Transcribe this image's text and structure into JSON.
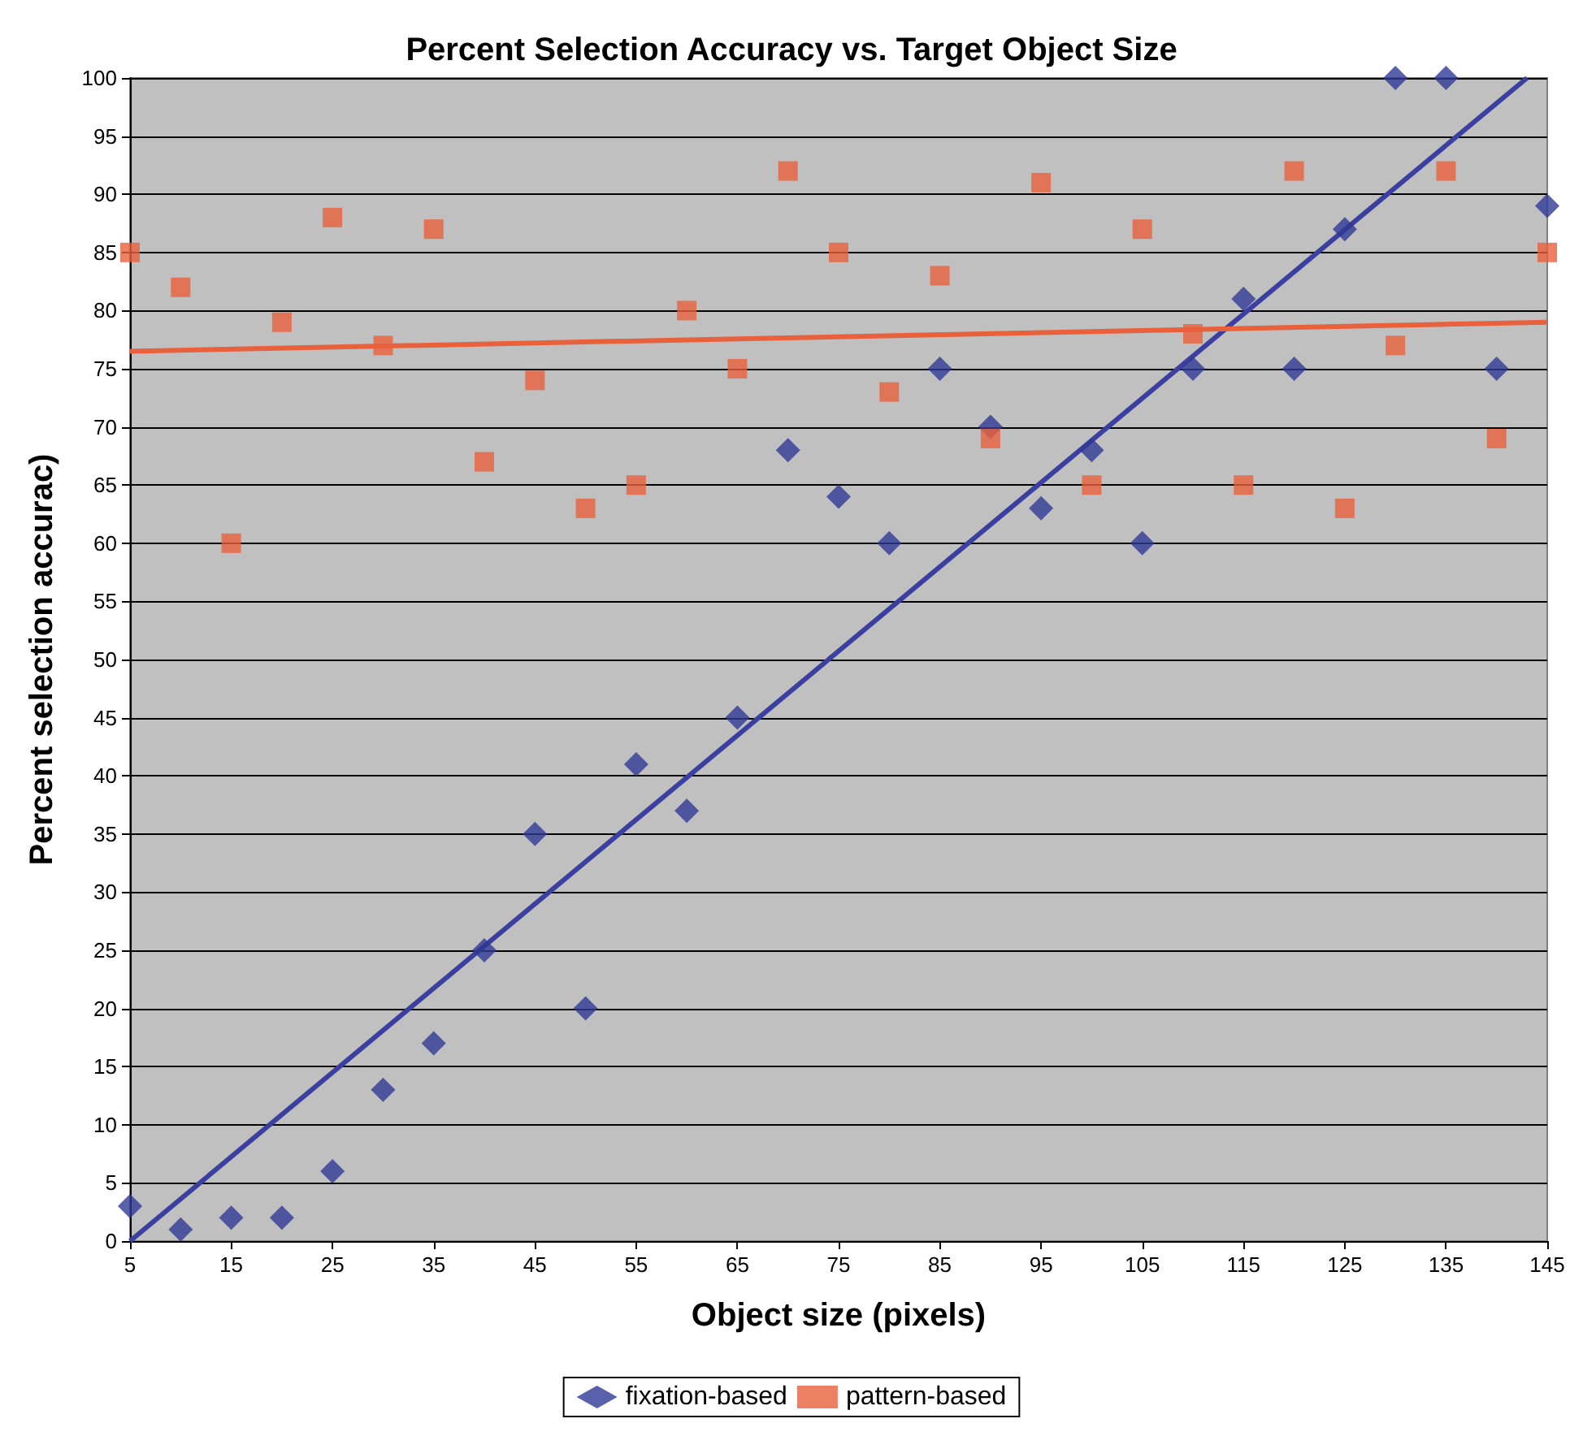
{
  "chart_data": {
    "type": "scatter",
    "title": "Percent Selection Accuracy vs. Target Object Size",
    "xlabel": "Object size (pixels)",
    "ylabel": "Percent selection accurac)",
    "x": [
      5,
      10,
      15,
      20,
      25,
      30,
      35,
      40,
      45,
      50,
      55,
      60,
      65,
      70,
      75,
      80,
      85,
      90,
      95,
      100,
      105,
      110,
      115,
      120,
      125,
      130,
      135,
      140,
      145
    ],
    "series": [
      {
        "name": "fixation-based",
        "color": "#2e3a94",
        "marker": "diamond",
        "values": [
          3,
          1,
          2,
          2,
          6,
          13,
          17,
          25,
          35,
          20,
          41,
          37,
          45,
          68,
          64,
          60,
          75,
          70,
          63,
          68,
          60,
          75,
          81,
          75,
          87,
          100,
          100,
          75,
          89
        ]
      },
      {
        "name": "pattern-based",
        "color": "#e8603c",
        "marker": "square",
        "values": [
          85,
          82,
          60,
          79,
          88,
          77,
          87,
          67,
          74,
          63,
          65,
          80,
          75,
          92,
          85,
          73,
          83,
          69,
          91,
          65,
          87,
          78,
          65,
          92,
          63,
          77,
          92,
          69,
          85
        ]
      },
      {
        "type": "line",
        "color": "#3a3fa0",
        "marker": "none",
        "x": [
          5,
          143
        ],
        "values": [
          0,
          100
        ]
      },
      {
        "type": "line",
        "color": "#e8603c",
        "marker": "none",
        "x": [
          5,
          145
        ],
        "values": [
          76.5,
          79
        ]
      }
    ],
    "xlim": [
      5,
      145
    ],
    "xticks": [
      5,
      15,
      25,
      35,
      45,
      55,
      65,
      75,
      85,
      95,
      105,
      115,
      125,
      135,
      145
    ],
    "ylim": [
      0,
      100
    ],
    "yticks": [
      0,
      5,
      10,
      15,
      20,
      25,
      30,
      35,
      40,
      45,
      50,
      55,
      60,
      65,
      70,
      75,
      80,
      85,
      90,
      95,
      100
    ],
    "grid": "y",
    "legend": "bottom"
  }
}
